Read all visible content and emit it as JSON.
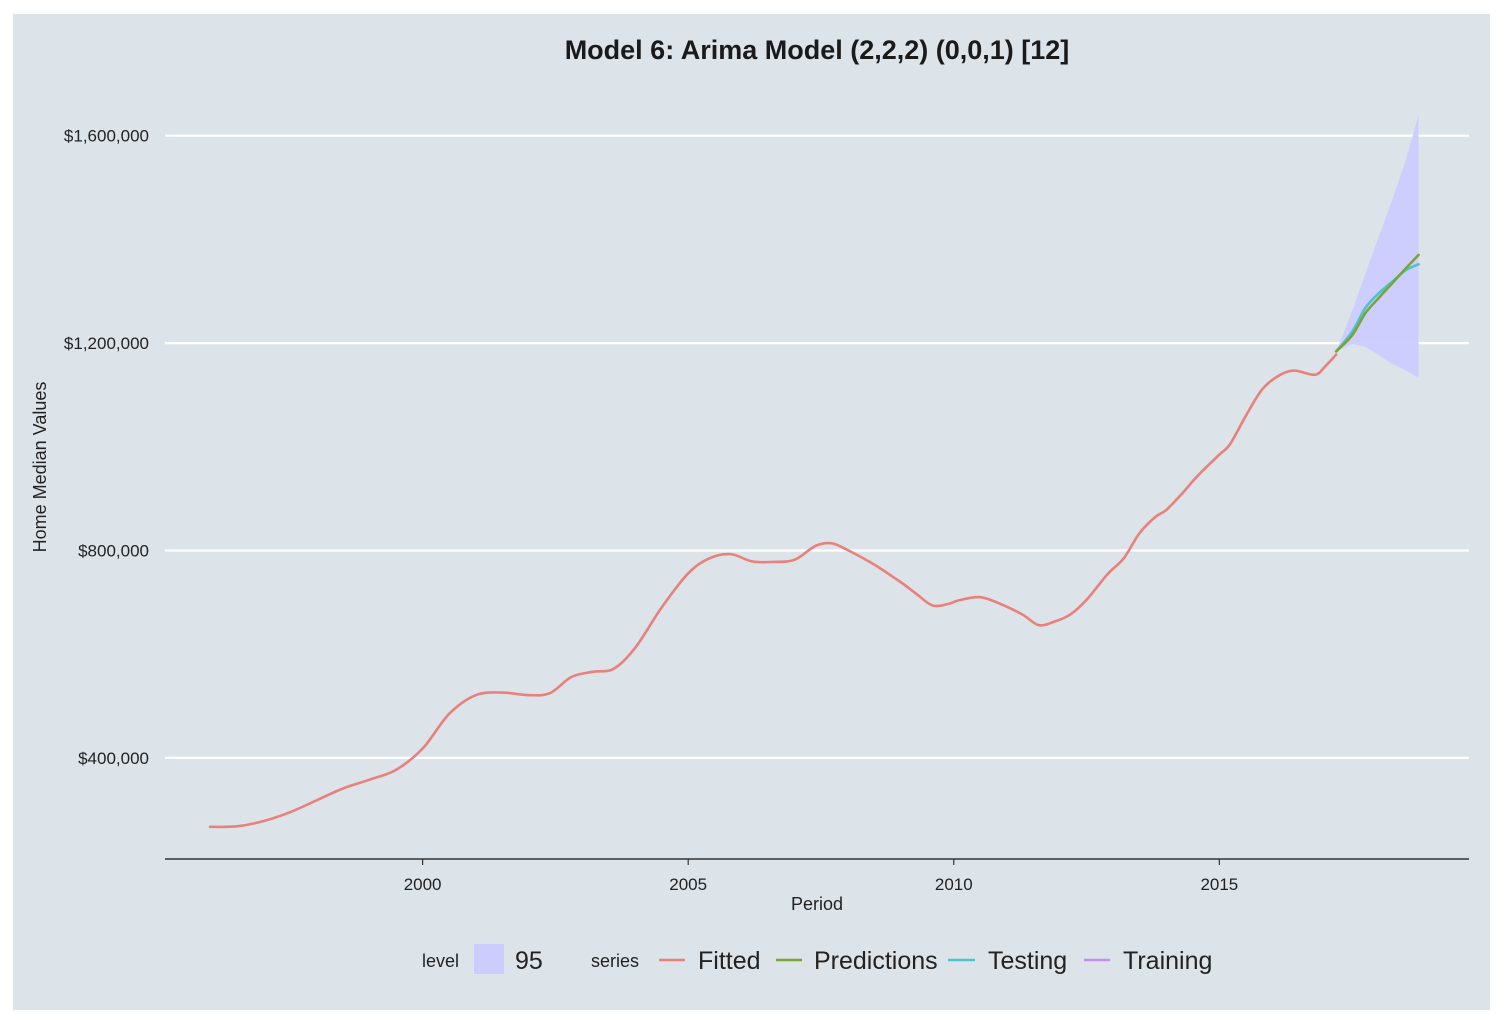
{
  "chart_data": {
    "type": "line",
    "title": "Model 6: Arima Model (2,2,2) (0,0,1) [12]",
    "xlabel": "Period",
    "ylabel": "Home Median Values",
    "xlim": [
      1995.15,
      2019.7
    ],
    "ylim": [
      205000,
      1665000
    ],
    "x_ticks": [
      2000,
      2005,
      2010,
      2015
    ],
    "x_tick_labels": [
      "2000",
      "2005",
      "2010",
      "2015"
    ],
    "y_ticks": [
      400000,
      800000,
      1200000,
      1600000
    ],
    "y_tick_labels": [
      "$400,000",
      "$800,000",
      "$1,200,000",
      "$1,600,000"
    ],
    "grid": "horizontal-major",
    "legend_position": "bottom",
    "colors": {
      "background": "#dce4ea",
      "gridline": "#ffffff",
      "band": "#ccccff",
      "fitted": "#e8807b",
      "predictions": "#7aa435",
      "testing": "#4ec3cd",
      "training": "#c48cf0"
    },
    "series": [
      {
        "name": "Fitted",
        "color": "#e8807b",
        "points": [
          [
            1996.0,
            267000
          ],
          [
            1996.5,
            268000
          ],
          [
            1997.0,
            278000
          ],
          [
            1997.5,
            295000
          ],
          [
            1998.0,
            318000
          ],
          [
            1998.5,
            341000
          ],
          [
            1999.0,
            358000
          ],
          [
            1999.5,
            377000
          ],
          [
            2000.0,
            418000
          ],
          [
            2000.5,
            485000
          ],
          [
            2001.0,
            521000
          ],
          [
            2001.5,
            526000
          ],
          [
            2002.0,
            521000
          ],
          [
            2002.4,
            525000
          ],
          [
            2002.8,
            556000
          ],
          [
            2003.2,
            566000
          ],
          [
            2003.6,
            572000
          ],
          [
            2004.0,
            612000
          ],
          [
            2004.5,
            690000
          ],
          [
            2005.0,
            756000
          ],
          [
            2005.4,
            785000
          ],
          [
            2005.8,
            793000
          ],
          [
            2006.2,
            779000
          ],
          [
            2006.6,
            778000
          ],
          [
            2007.0,
            782000
          ],
          [
            2007.4,
            809000
          ],
          [
            2007.7,
            814000
          ],
          [
            2008.0,
            801000
          ],
          [
            2008.5,
            773000
          ],
          [
            2009.0,
            739000
          ],
          [
            2009.3,
            716000
          ],
          [
            2009.6,
            694000
          ],
          [
            2009.9,
            697000
          ],
          [
            2010.1,
            704000
          ],
          [
            2010.5,
            710000
          ],
          [
            2010.9,
            696000
          ],
          [
            2011.3,
            676000
          ],
          [
            2011.6,
            656000
          ],
          [
            2011.9,
            663000
          ],
          [
            2012.2,
            677000
          ],
          [
            2012.5,
            705000
          ],
          [
            2012.9,
            755000
          ],
          [
            2013.2,
            785000
          ],
          [
            2013.5,
            834000
          ],
          [
            2013.8,
            865000
          ],
          [
            2014.0,
            878000
          ],
          [
            2014.3,
            910000
          ],
          [
            2014.6,
            945000
          ],
          [
            2015.0,
            985000
          ],
          [
            2015.2,
            1005000
          ],
          [
            2015.5,
            1060000
          ],
          [
            2015.8,
            1110000
          ],
          [
            2016.1,
            1136000
          ],
          [
            2016.4,
            1147000
          ],
          [
            2016.8,
            1139000
          ],
          [
            2017.0,
            1156000
          ],
          [
            2017.2,
            1178000
          ]
        ]
      },
      {
        "name": "Predictions",
        "color": "#7aa435",
        "points": [
          [
            2017.2,
            1184000
          ],
          [
            2017.5,
            1215000
          ],
          [
            2017.75,
            1258000
          ],
          [
            2018.0,
            1287000
          ],
          [
            2018.25,
            1315000
          ],
          [
            2018.5,
            1343000
          ],
          [
            2018.75,
            1370000
          ]
        ]
      },
      {
        "name": "Testing",
        "color": "#4ec3cd",
        "points": [
          [
            2017.2,
            1184000
          ],
          [
            2017.5,
            1222000
          ],
          [
            2017.75,
            1268000
          ],
          [
            2018.0,
            1296000
          ],
          [
            2018.25,
            1318000
          ],
          [
            2018.5,
            1340000
          ],
          [
            2018.75,
            1352000
          ]
        ]
      },
      {
        "name": "Training",
        "color": "#c48cf0",
        "points": []
      }
    ],
    "band": {
      "level": "95",
      "upper": [
        [
          2017.2,
          1184000
        ],
        [
          2017.5,
          1262000
        ],
        [
          2017.75,
          1335000
        ],
        [
          2018.0,
          1405000
        ],
        [
          2018.25,
          1475000
        ],
        [
          2018.5,
          1550000
        ],
        [
          2018.75,
          1640000
        ]
      ],
      "lower": [
        [
          2017.2,
          1184000
        ],
        [
          2017.5,
          1198000
        ],
        [
          2017.75,
          1193000
        ],
        [
          2018.0,
          1177000
        ],
        [
          2018.25,
          1160000
        ],
        [
          2018.5,
          1148000
        ],
        [
          2018.75,
          1133000
        ]
      ]
    }
  },
  "legend": {
    "level_title": "level",
    "level_value": "95",
    "series_title": "series",
    "items": [
      "Fitted",
      "Predictions",
      "Testing",
      "Training"
    ]
  }
}
